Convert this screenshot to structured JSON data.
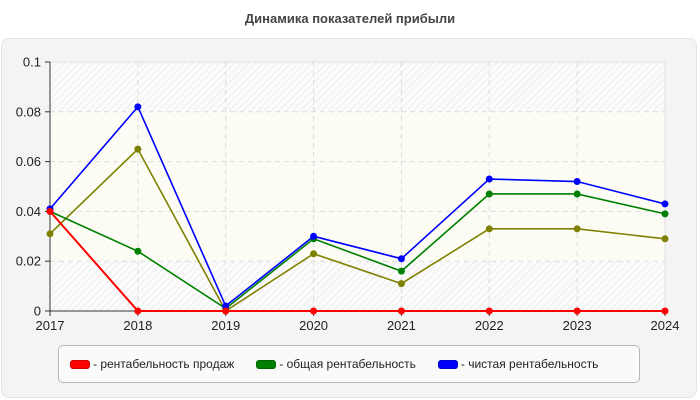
{
  "title": "Динамика показателей прибыли",
  "chart_data": {
    "type": "line",
    "title": "Динамика показателей прибыли",
    "xlabel": "",
    "ylabel": "",
    "x": [
      "2017",
      "2018",
      "2019",
      "2020",
      "2021",
      "2022",
      "2023",
      "2024"
    ],
    "ylim": [
      0,
      0.1
    ],
    "yticks": [
      "0",
      "0.02",
      "0.04",
      "0.06",
      "0.08",
      "0.1"
    ],
    "grid": true,
    "legend_position": "bottom",
    "series": [
      {
        "name": "рентабельность продаж",
        "color": "#ff0000",
        "values": [
          0.04,
          0,
          0,
          0,
          0,
          0,
          0,
          0
        ]
      },
      {
        "name": "общая рентабельность",
        "color": "#008000",
        "values": [
          0.04,
          0.024,
          0.001,
          0.029,
          0.016,
          0.047,
          0.047,
          0.039
        ]
      },
      {
        "name": "чистая рентабельность",
        "color": "#0000ff",
        "values": [
          0.041,
          0.082,
          0.002,
          0.03,
          0.021,
          0.053,
          0.052,
          0.043
        ]
      },
      {
        "name": "",
        "color": "#808000",
        "values": [
          0.031,
          0.065,
          0.0,
          0.023,
          0.011,
          0.033,
          0.033,
          0.029
        ]
      }
    ]
  },
  "legend": [
    {
      "label": "- рентабельность продаж",
      "color": "#ff0000"
    },
    {
      "label": "- общая рентабельность",
      "color": "#008000"
    },
    {
      "label": "- чистая рентабельность",
      "color": "#0000ff"
    }
  ]
}
